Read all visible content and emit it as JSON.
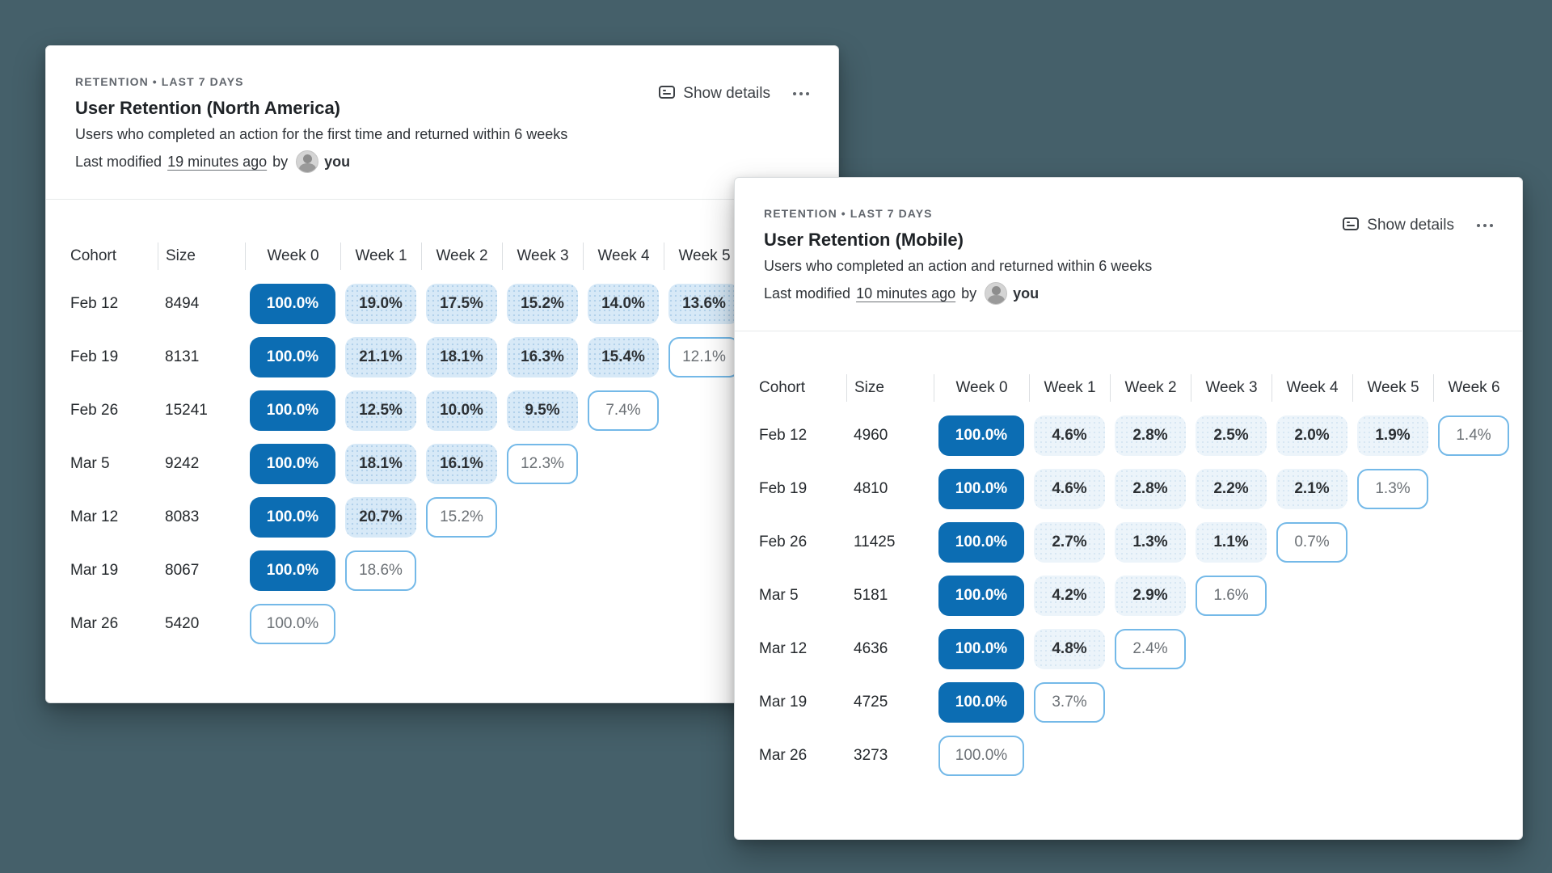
{
  "page": {
    "background_color": "#45606a",
    "accent_color": "#0c6db3",
    "fill_color_strong": "#d7e9f7",
    "fill_color_light": "#ecf4fa",
    "outline_border_color": "#74b9e8"
  },
  "icons": {
    "show_details": "panel-details-icon",
    "more": "ellipsis-icon",
    "avatar": "user-avatar"
  },
  "cards": [
    {
      "kicker": "RETENTION • LAST 7 DAYS",
      "title": "User Retention (North America)",
      "description": "Users who completed an action for the first time and returned within 6 weeks",
      "modified_prefix": "Last modified",
      "modified_time": "19 minutes ago",
      "modified_joiner": "by",
      "modified_user": "you",
      "show_details_label": "Show details",
      "columns": [
        "Cohort",
        "Size",
        "Week 0",
        "Week 1",
        "Week 2",
        "Week 3",
        "Week 4",
        "Week 5"
      ],
      "rows": [
        {
          "cohort": "Feb 12",
          "size": "8494",
          "cells": [
            {
              "v": "100.0%",
              "t": "solid"
            },
            {
              "v": "19.0%",
              "t": "fill"
            },
            {
              "v": "17.5%",
              "t": "fill"
            },
            {
              "v": "15.2%",
              "t": "fill"
            },
            {
              "v": "14.0%",
              "t": "fill"
            },
            {
              "v": "13.6%",
              "t": "fill"
            }
          ]
        },
        {
          "cohort": "Feb 19",
          "size": "8131",
          "cells": [
            {
              "v": "100.0%",
              "t": "solid"
            },
            {
              "v": "21.1%",
              "t": "fill"
            },
            {
              "v": "18.1%",
              "t": "fill"
            },
            {
              "v": "16.3%",
              "t": "fill"
            },
            {
              "v": "15.4%",
              "t": "fill"
            },
            {
              "v": "12.1%",
              "t": "outline"
            }
          ]
        },
        {
          "cohort": "Feb 26",
          "size": "15241",
          "cells": [
            {
              "v": "100.0%",
              "t": "solid"
            },
            {
              "v": "12.5%",
              "t": "fill"
            },
            {
              "v": "10.0%",
              "t": "fill"
            },
            {
              "v": "9.5%",
              "t": "fill"
            },
            {
              "v": "7.4%",
              "t": "outline"
            }
          ]
        },
        {
          "cohort": "Mar 5",
          "size": "9242",
          "cells": [
            {
              "v": "100.0%",
              "t": "solid"
            },
            {
              "v": "18.1%",
              "t": "fill"
            },
            {
              "v": "16.1%",
              "t": "fill"
            },
            {
              "v": "12.3%",
              "t": "outline"
            }
          ]
        },
        {
          "cohort": "Mar 12",
          "size": "8083",
          "cells": [
            {
              "v": "100.0%",
              "t": "solid"
            },
            {
              "v": "20.7%",
              "t": "fill"
            },
            {
              "v": "15.2%",
              "t": "outline"
            }
          ]
        },
        {
          "cohort": "Mar 19",
          "size": "8067",
          "cells": [
            {
              "v": "100.0%",
              "t": "solid"
            },
            {
              "v": "18.6%",
              "t": "outline"
            }
          ]
        },
        {
          "cohort": "Mar 26",
          "size": "5420",
          "cells": [
            {
              "v": "100.0%",
              "t": "outline"
            }
          ]
        }
      ]
    },
    {
      "kicker": "RETENTION • LAST 7 DAYS",
      "title": "User Retention (Mobile)",
      "description": "Users who completed an action and returned within 6 weeks",
      "modified_prefix": "Last modified",
      "modified_time": "10 minutes ago",
      "modified_joiner": "by",
      "modified_user": "you",
      "show_details_label": "Show details",
      "columns": [
        "Cohort",
        "Size",
        "Week 0",
        "Week 1",
        "Week 2",
        "Week 3",
        "Week 4",
        "Week 5",
        "Week 6"
      ],
      "rows": [
        {
          "cohort": "Feb 12",
          "size": "4960",
          "cells": [
            {
              "v": "100.0%",
              "t": "solid"
            },
            {
              "v": "4.6%",
              "t": "fill"
            },
            {
              "v": "2.8%",
              "t": "fill"
            },
            {
              "v": "2.5%",
              "t": "fill"
            },
            {
              "v": "2.0%",
              "t": "fill"
            },
            {
              "v": "1.9%",
              "t": "fill"
            },
            {
              "v": "1.4%",
              "t": "outline"
            }
          ]
        },
        {
          "cohort": "Feb 19",
          "size": "4810",
          "cells": [
            {
              "v": "100.0%",
              "t": "solid"
            },
            {
              "v": "4.6%",
              "t": "fill"
            },
            {
              "v": "2.8%",
              "t": "fill"
            },
            {
              "v": "2.2%",
              "t": "fill"
            },
            {
              "v": "2.1%",
              "t": "fill"
            },
            {
              "v": "1.3%",
              "t": "outline"
            }
          ]
        },
        {
          "cohort": "Feb 26",
          "size": "11425",
          "cells": [
            {
              "v": "100.0%",
              "t": "solid"
            },
            {
              "v": "2.7%",
              "t": "fill"
            },
            {
              "v": "1.3%",
              "t": "fill"
            },
            {
              "v": "1.1%",
              "t": "fill"
            },
            {
              "v": "0.7%",
              "t": "outline"
            }
          ]
        },
        {
          "cohort": "Mar 5",
          "size": "5181",
          "cells": [
            {
              "v": "100.0%",
              "t": "solid"
            },
            {
              "v": "4.2%",
              "t": "fill"
            },
            {
              "v": "2.9%",
              "t": "fill"
            },
            {
              "v": "1.6%",
              "t": "outline"
            }
          ]
        },
        {
          "cohort": "Mar 12",
          "size": "4636",
          "cells": [
            {
              "v": "100.0%",
              "t": "solid"
            },
            {
              "v": "4.8%",
              "t": "fill"
            },
            {
              "v": "2.4%",
              "t": "outline"
            }
          ]
        },
        {
          "cohort": "Mar 19",
          "size": "4725",
          "cells": [
            {
              "v": "100.0%",
              "t": "solid"
            },
            {
              "v": "3.7%",
              "t": "outline"
            }
          ]
        },
        {
          "cohort": "Mar 26",
          "size": "3273",
          "cells": [
            {
              "v": "100.0%",
              "t": "outline"
            }
          ]
        }
      ]
    }
  ]
}
